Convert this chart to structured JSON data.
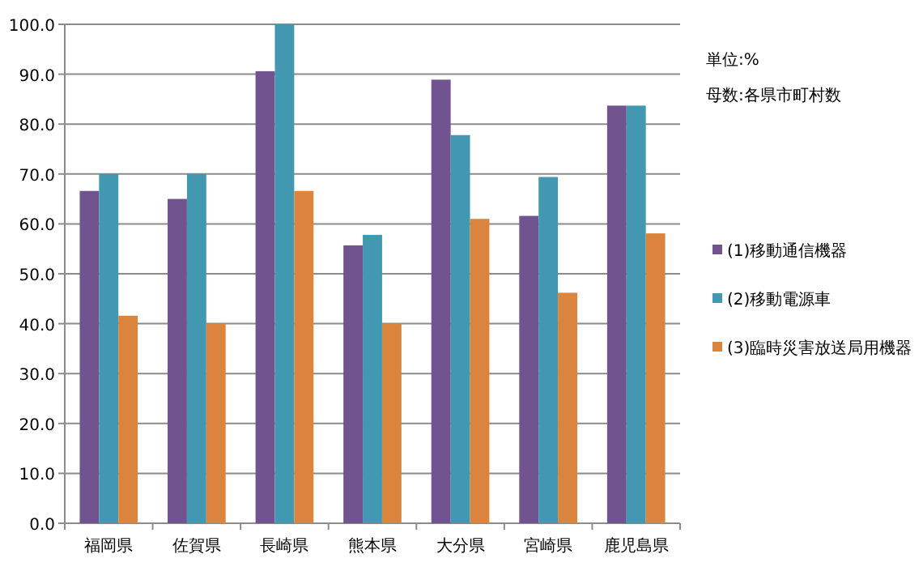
{
  "chart_data": {
    "type": "bar",
    "categories": [
      "福岡県",
      "佐賀県",
      "長崎県",
      "熊本県",
      "大分県",
      "宮崎県",
      "鹿児島県"
    ],
    "series": [
      {
        "name": "(1)移動通信機器",
        "color": "#71548f",
        "values": [
          66.6,
          65.0,
          90.6,
          55.7,
          88.9,
          61.6,
          83.7
        ]
      },
      {
        "name": "(2)移動電源車",
        "color": "#4298b0",
        "values": [
          70.0,
          70.0,
          100.0,
          57.8,
          77.8,
          69.4,
          83.7
        ]
      },
      {
        "name": "(3)臨時災害放送局用機器",
        "color": "#db843d",
        "values": [
          41.6,
          40.0,
          66.6,
          40.0,
          61.0,
          46.2,
          58.1
        ]
      }
    ],
    "ylim": [
      0,
      100
    ],
    "yticks": [
      {
        "value": 0,
        "label": "0.0"
      },
      {
        "value": 10,
        "label": "10.0"
      },
      {
        "value": 20,
        "label": "20.0"
      },
      {
        "value": 30,
        "label": "30.0"
      },
      {
        "value": 40,
        "label": "40.0"
      },
      {
        "value": 50,
        "label": "50.0"
      },
      {
        "value": 60,
        "label": "60.0"
      },
      {
        "value": 70,
        "label": "70.0"
      },
      {
        "value": 80,
        "label": "80.0"
      },
      {
        "value": 90,
        "label": "90.0"
      },
      {
        "value": 100,
        "label": "100.0"
      }
    ],
    "grid": "y",
    "legend": "right",
    "annotations": [
      "単位:%",
      "母数:各県市町村数"
    ]
  }
}
